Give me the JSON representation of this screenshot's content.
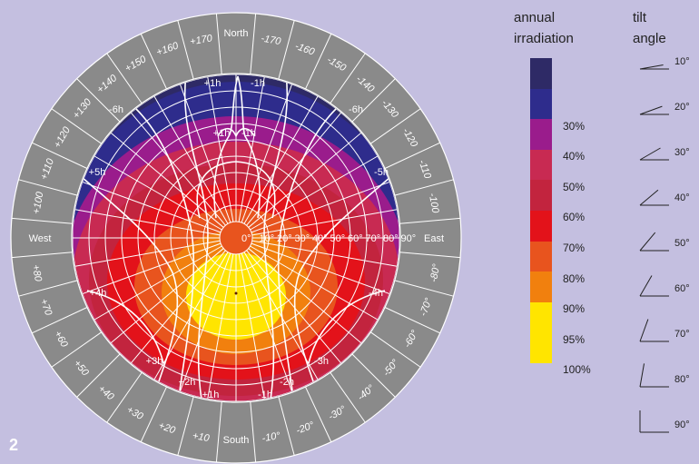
{
  "figure_number": "2",
  "legend": {
    "title_line1": "annual",
    "title_line2": "irradiation",
    "bands": [
      {
        "color": "#2e2a66",
        "label": ""
      },
      {
        "color": "#2e2c8c",
        "label": "30%"
      },
      {
        "color": "#9a1c8c",
        "label": "40%"
      },
      {
        "color": "#c82a52",
        "label": "50%"
      },
      {
        "color": "#c2243e",
        "label": "60%"
      },
      {
        "color": "#e3121a",
        "label": "70%"
      },
      {
        "color": "#e8541e",
        "label": "80%"
      },
      {
        "color": "#f1800e",
        "label": "90%"
      },
      {
        "color": "#ffe500",
        "label": "95%"
      },
      {
        "color": "#ffe500",
        "label": "100%"
      }
    ]
  },
  "tilt": {
    "title_line1": "tilt",
    "title_line2": "angle",
    "angles": [
      "10°",
      "20°",
      "30°",
      "40°",
      "50°",
      "60°",
      "70°",
      "80°",
      "90°"
    ],
    "values": [
      10,
      20,
      30,
      40,
      50,
      60,
      70,
      80,
      90
    ]
  },
  "dial": {
    "north": "North",
    "south": "South",
    "east": "East",
    "west": "West",
    "azimuth_labels_west": [
      "+10",
      "+20",
      "+30",
      "+40",
      "+50",
      "+60",
      "+70",
      "+80",
      "+100",
      "+110",
      "+120",
      "+130",
      "+140",
      "+150",
      "+160",
      "+170"
    ],
    "azimuth_labels_east": [
      "-10°",
      "-20°",
      "-30°",
      "-40°",
      "-50°",
      "-60°",
      "-70°",
      "-80°",
      "-100",
      "-110",
      "-120",
      "-130",
      "-140",
      "-150",
      "-160",
      "-170"
    ],
    "azimuth_values_west": [
      10,
      20,
      30,
      40,
      50,
      60,
      70,
      80,
      100,
      110,
      120,
      130,
      140,
      150,
      160,
      170
    ],
    "azimuth_values_east": [
      10,
      20,
      30,
      40,
      50,
      60,
      70,
      80,
      100,
      110,
      120,
      130,
      140,
      150,
      160,
      170
    ],
    "tilt_scale": [
      "0°",
      "10°",
      "20°",
      "30°",
      "40°",
      "50°",
      "60°",
      "70°",
      "80°",
      "90°"
    ],
    "hour_labels": [
      "+1h",
      "-1h",
      "+1h",
      "-1h",
      "-6h",
      "-6h",
      "+5h",
      "-5h",
      "+4h",
      "-4h",
      "+3h",
      "-3h",
      "+2h",
      "-2h",
      "+1h",
      "-1h"
    ]
  }
}
